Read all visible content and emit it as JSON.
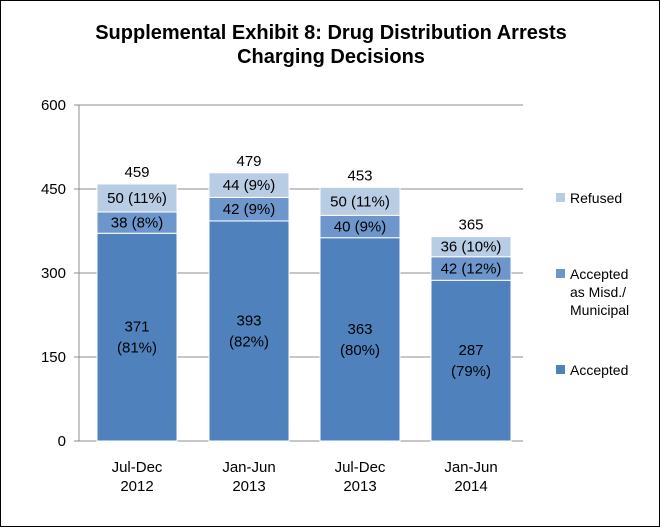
{
  "chart_data": {
    "type": "bar",
    "stacked": true,
    "title_lines": [
      "Supplemental Exhibit 8: Drug Distribution Arrests",
      "Charging Decisions"
    ],
    "categories": [
      [
        "Jul-Dec",
        "2012"
      ],
      [
        "Jan-Jun",
        "2013"
      ],
      [
        "Jul-Dec",
        "2013"
      ],
      [
        "Jan-Jun",
        "2014"
      ]
    ],
    "totals": [
      459,
      479,
      453,
      365
    ],
    "ylim": [
      0,
      600
    ],
    "yticks": [
      0,
      150,
      300,
      450,
      600
    ],
    "grid": true,
    "legend_position": "right",
    "series": [
      {
        "name": "Accepted",
        "color": "#4f81bd",
        "values": [
          371,
          393,
          363,
          287
        ],
        "labels": [
          [
            "371",
            "(81%)"
          ],
          [
            "393",
            "(82%)"
          ],
          [
            "363",
            "(80%)"
          ],
          [
            "287",
            "(79%)"
          ]
        ]
      },
      {
        "name_lines": [
          "Accepted",
          "as Misd./",
          "Municipal"
        ],
        "color": "#6d96cc",
        "values": [
          38,
          42,
          40,
          42
        ],
        "labels": [
          [
            "38 (8%)"
          ],
          [
            "42 (9%)"
          ],
          [
            "40 (9%)"
          ],
          [
            "42 (12%)"
          ]
        ]
      },
      {
        "name": "Refused",
        "color": "#b8cce4",
        "values": [
          50,
          44,
          50,
          36
        ],
        "labels": [
          [
            "50 (11%)"
          ],
          [
            "44 (9%)"
          ],
          [
            "50 (11%)"
          ],
          [
            "36 (10%)"
          ]
        ]
      }
    ]
  }
}
